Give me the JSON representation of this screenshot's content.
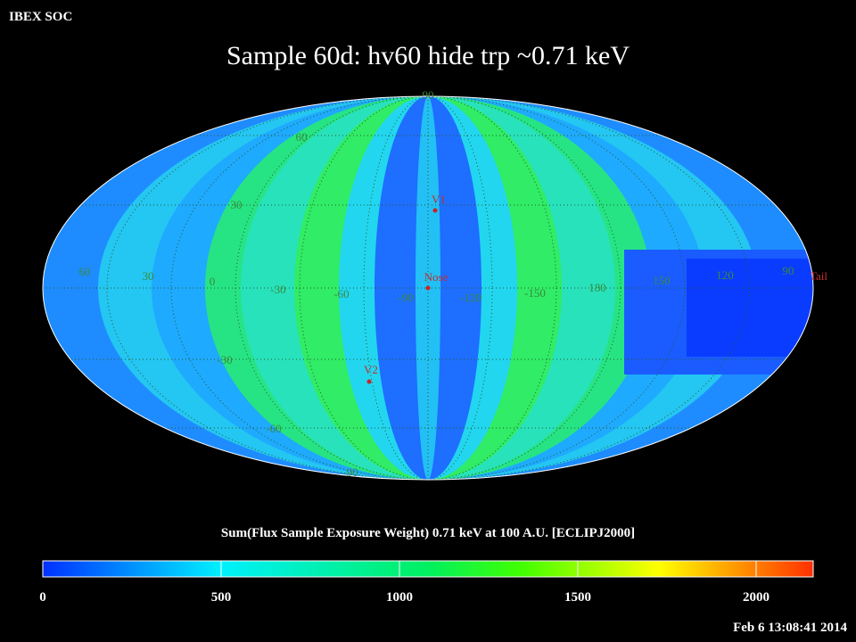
{
  "header": "IBEX SOC",
  "title": "Sample 60d: hv60 hide trp ~0.71 keV",
  "map": {
    "longitude_labels": [
      "60",
      "30",
      "0",
      "-30",
      "-60",
      "-90",
      "-120",
      "-150",
      "180",
      "150",
      "120",
      "90"
    ],
    "latitude_labels": [
      "90",
      "60",
      "30",
      "-30",
      "-60",
      "-90"
    ],
    "markers": [
      "V1",
      "Nose",
      "V2",
      "Tail"
    ]
  },
  "colorbar": {
    "label": "Sum(Flux Sample Exposure Weight)  0.71 keV at 100 A.U. [ECLIPJ2000]",
    "range": [
      0,
      2160
    ],
    "ticks": [
      0,
      500,
      1000,
      1500,
      2000
    ]
  },
  "timestamp": "Feb  6 13:08:41 2014"
}
